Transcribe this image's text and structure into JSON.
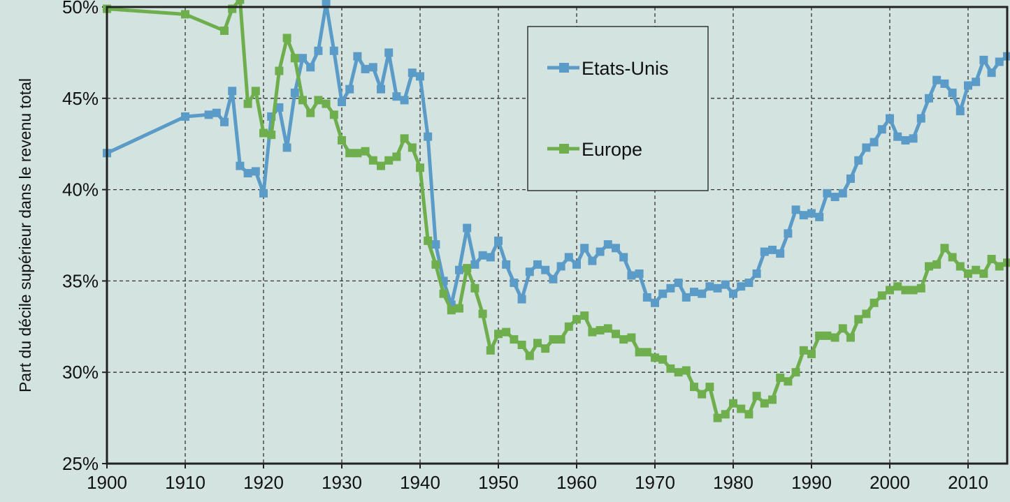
{
  "chart_data": {
    "type": "line",
    "title": "",
    "xlabel": "",
    "ylabel": "Part du décile supérieur dans le revenu total",
    "xlim": [
      1900,
      2015
    ],
    "ylim": [
      25,
      50
    ],
    "x_ticks": [
      1900,
      1910,
      1920,
      1930,
      1940,
      1950,
      1960,
      1970,
      1980,
      1990,
      2000,
      2010
    ],
    "y_ticks": [
      25,
      30,
      35,
      40,
      45,
      50
    ],
    "y_tick_labels": [
      "25%",
      "30%",
      "35%",
      "40%",
      "45%",
      "50%"
    ],
    "grid": true,
    "legend_position": "top-center",
    "series": [
      {
        "name": "Etats-Unis",
        "color": "#5b9bc8",
        "marker": "square",
        "points": [
          [
            1900,
            42.0
          ],
          [
            1910,
            44.0
          ],
          [
            1913,
            44.1
          ],
          [
            1914,
            44.2
          ],
          [
            1915,
            43.7
          ],
          [
            1916,
            45.4
          ],
          [
            1917,
            41.3
          ],
          [
            1918,
            40.9
          ],
          [
            1919,
            41.0
          ],
          [
            1920,
            39.8
          ],
          [
            1921,
            44.0
          ],
          [
            1922,
            44.5
          ],
          [
            1923,
            42.3
          ],
          [
            1924,
            45.3
          ],
          [
            1925,
            47.2
          ],
          [
            1926,
            46.7
          ],
          [
            1927,
            47.6
          ],
          [
            1928,
            50.2
          ],
          [
            1929,
            47.6
          ],
          [
            1930,
            44.8
          ],
          [
            1931,
            45.5
          ],
          [
            1932,
            47.3
          ],
          [
            1933,
            46.6
          ],
          [
            1934,
            46.7
          ],
          [
            1935,
            45.5
          ],
          [
            1936,
            47.5
          ],
          [
            1937,
            45.1
          ],
          [
            1938,
            44.9
          ],
          [
            1939,
            46.4
          ],
          [
            1940,
            46.2
          ],
          [
            1941,
            42.9
          ],
          [
            1942,
            37.0
          ],
          [
            1943,
            35.0
          ],
          [
            1944,
            33.7
          ],
          [
            1945,
            35.6
          ],
          [
            1946,
            37.9
          ],
          [
            1947,
            35.9
          ],
          [
            1948,
            36.4
          ],
          [
            1949,
            36.3
          ],
          [
            1950,
            37.2
          ],
          [
            1951,
            35.9
          ],
          [
            1952,
            34.9
          ],
          [
            1953,
            34.0
          ],
          [
            1954,
            35.5
          ],
          [
            1955,
            35.9
          ],
          [
            1956,
            35.6
          ],
          [
            1957,
            35.1
          ],
          [
            1958,
            35.8
          ],
          [
            1959,
            36.3
          ],
          [
            1960,
            35.9
          ],
          [
            1961,
            36.8
          ],
          [
            1962,
            36.1
          ],
          [
            1963,
            36.6
          ],
          [
            1964,
            37.0
          ],
          [
            1965,
            36.8
          ],
          [
            1966,
            36.3
          ],
          [
            1967,
            35.3
          ],
          [
            1968,
            35.4
          ],
          [
            1969,
            34.1
          ],
          [
            1970,
            33.8
          ],
          [
            1971,
            34.3
          ],
          [
            1972,
            34.6
          ],
          [
            1973,
            34.9
          ],
          [
            1974,
            34.1
          ],
          [
            1975,
            34.4
          ],
          [
            1976,
            34.3
          ],
          [
            1977,
            34.7
          ],
          [
            1978,
            34.6
          ],
          [
            1979,
            34.8
          ],
          [
            1980,
            34.3
          ],
          [
            1981,
            34.7
          ],
          [
            1982,
            34.9
          ],
          [
            1983,
            35.4
          ],
          [
            1984,
            36.6
          ],
          [
            1985,
            36.7
          ],
          [
            1986,
            36.5
          ],
          [
            1987,
            37.6
          ],
          [
            1988,
            38.9
          ],
          [
            1989,
            38.6
          ],
          [
            1990,
            38.7
          ],
          [
            1991,
            38.5
          ],
          [
            1992,
            39.8
          ],
          [
            1993,
            39.6
          ],
          [
            1994,
            39.8
          ],
          [
            1995,
            40.6
          ],
          [
            1996,
            41.6
          ],
          [
            1997,
            42.3
          ],
          [
            1998,
            42.6
          ],
          [
            1999,
            43.3
          ],
          [
            2000,
            43.9
          ],
          [
            2001,
            42.9
          ],
          [
            2002,
            42.7
          ],
          [
            2003,
            42.8
          ],
          [
            2004,
            43.9
          ],
          [
            2005,
            45.0
          ],
          [
            2006,
            46.0
          ],
          [
            2007,
            45.8
          ],
          [
            2008,
            45.3
          ],
          [
            2009,
            44.3
          ],
          [
            2010,
            45.7
          ],
          [
            2011,
            45.9
          ],
          [
            2012,
            47.1
          ],
          [
            2013,
            46.4
          ],
          [
            2014,
            47.0
          ],
          [
            2015,
            47.3
          ]
        ]
      },
      {
        "name": "Europe",
        "color": "#6fae4d",
        "marker": "square",
        "points": [
          [
            1900,
            49.9
          ],
          [
            1910,
            49.6
          ],
          [
            1915,
            48.7
          ],
          [
            1916,
            49.9
          ],
          [
            1917,
            50.4
          ],
          [
            1918,
            44.7
          ],
          [
            1919,
            45.4
          ],
          [
            1920,
            43.1
          ],
          [
            1921,
            43.0
          ],
          [
            1922,
            46.5
          ],
          [
            1923,
            48.3
          ],
          [
            1924,
            47.2
          ],
          [
            1925,
            44.9
          ],
          [
            1926,
            44.2
          ],
          [
            1927,
            44.9
          ],
          [
            1928,
            44.7
          ],
          [
            1929,
            44.1
          ],
          [
            1930,
            42.7
          ],
          [
            1931,
            42.0
          ],
          [
            1932,
            42.0
          ],
          [
            1933,
            42.1
          ],
          [
            1934,
            41.6
          ],
          [
            1935,
            41.3
          ],
          [
            1936,
            41.6
          ],
          [
            1937,
            41.8
          ],
          [
            1938,
            42.8
          ],
          [
            1939,
            42.3
          ],
          [
            1940,
            41.2
          ],
          [
            1941,
            37.2
          ],
          [
            1942,
            35.9
          ],
          [
            1943,
            34.3
          ],
          [
            1944,
            33.4
          ],
          [
            1945,
            33.5
          ],
          [
            1946,
            35.7
          ],
          [
            1947,
            34.6
          ],
          [
            1948,
            33.2
          ],
          [
            1949,
            31.2
          ],
          [
            1950,
            32.1
          ],
          [
            1951,
            32.2
          ],
          [
            1952,
            31.8
          ],
          [
            1953,
            31.5
          ],
          [
            1954,
            30.9
          ],
          [
            1955,
            31.6
          ],
          [
            1956,
            31.3
          ],
          [
            1957,
            31.8
          ],
          [
            1958,
            31.8
          ],
          [
            1959,
            32.5
          ],
          [
            1960,
            32.9
          ],
          [
            1961,
            33.1
          ],
          [
            1962,
            32.2
          ],
          [
            1963,
            32.3
          ],
          [
            1964,
            32.4
          ],
          [
            1965,
            32.1
          ],
          [
            1966,
            31.8
          ],
          [
            1967,
            31.9
          ],
          [
            1968,
            31.1
          ],
          [
            1969,
            31.1
          ],
          [
            1970,
            30.8
          ],
          [
            1971,
            30.7
          ],
          [
            1972,
            30.2
          ],
          [
            1973,
            30.0
          ],
          [
            1974,
            30.1
          ],
          [
            1975,
            29.2
          ],
          [
            1976,
            28.8
          ],
          [
            1977,
            29.2
          ],
          [
            1978,
            27.5
          ],
          [
            1979,
            27.7
          ],
          [
            1980,
            28.3
          ],
          [
            1981,
            28.0
          ],
          [
            1982,
            27.7
          ],
          [
            1983,
            28.7
          ],
          [
            1984,
            28.3
          ],
          [
            1985,
            28.5
          ],
          [
            1986,
            29.7
          ],
          [
            1987,
            29.5
          ],
          [
            1988,
            30.0
          ],
          [
            1989,
            31.2
          ],
          [
            1990,
            31.0
          ],
          [
            1991,
            32.0
          ],
          [
            1992,
            32.0
          ],
          [
            1993,
            31.9
          ],
          [
            1994,
            32.4
          ],
          [
            1995,
            31.9
          ],
          [
            1996,
            32.9
          ],
          [
            1997,
            33.2
          ],
          [
            1998,
            33.8
          ],
          [
            1999,
            34.2
          ],
          [
            2000,
            34.5
          ],
          [
            2001,
            34.7
          ],
          [
            2002,
            34.5
          ],
          [
            2003,
            34.5
          ],
          [
            2004,
            34.6
          ],
          [
            2005,
            35.8
          ],
          [
            2006,
            35.9
          ],
          [
            2007,
            36.8
          ],
          [
            2008,
            36.3
          ],
          [
            2009,
            35.8
          ],
          [
            2010,
            35.4
          ],
          [
            2011,
            35.6
          ],
          [
            2012,
            35.4
          ],
          [
            2013,
            36.2
          ],
          [
            2014,
            35.8
          ],
          [
            2015,
            36.0
          ]
        ]
      }
    ]
  }
}
